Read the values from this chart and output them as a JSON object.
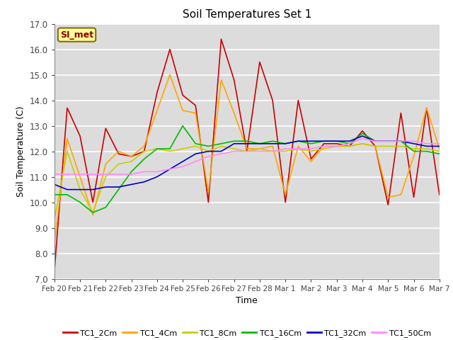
{
  "title": "Soil Temperatures Set 1",
  "xlabel": "Time",
  "ylabel": "Soil Temperature (C)",
  "ylim": [
    7.0,
    17.0
  ],
  "yticks": [
    7.0,
    8.0,
    9.0,
    10.0,
    11.0,
    12.0,
    13.0,
    14.0,
    15.0,
    16.0,
    17.0
  ],
  "annotation_text": "SI_met",
  "annotation_color": "#8B0000",
  "annotation_bg": "#FFFF99",
  "annotation_border": "#8B6914",
  "bg_color": "#DCDCDC",
  "series_order": [
    "TC1_2Cm",
    "TC1_4Cm",
    "TC1_8Cm",
    "TC1_16Cm",
    "TC1_32Cm",
    "TC1_50Cm"
  ],
  "series": {
    "TC1_2Cm": {
      "color": "#CC0000",
      "lw": 1.2
    },
    "TC1_4Cm": {
      "color": "#FFA500",
      "lw": 1.2
    },
    "TC1_8Cm": {
      "color": "#CCCC00",
      "lw": 1.2
    },
    "TC1_16Cm": {
      "color": "#00BB00",
      "lw": 1.2
    },
    "TC1_32Cm": {
      "color": "#0000CC",
      "lw": 1.2
    },
    "TC1_50Cm": {
      "color": "#FF88FF",
      "lw": 1.2
    }
  },
  "xtick_labels": [
    "Feb 20",
    "Feb 21",
    "Feb 22",
    "Feb 23",
    "Feb 24",
    "Feb 25",
    "Feb 26",
    "Feb 27",
    "Feb 28",
    "Mar 1",
    "Mar 2",
    "Mar 3",
    "Mar 4",
    "Mar 5",
    "Mar 6",
    "Mar 7"
  ],
  "TC1_2Cm": [
    7.3,
    13.7,
    12.6,
    10.0,
    12.9,
    11.9,
    11.8,
    12.0,
    14.3,
    16.0,
    14.2,
    13.8,
    10.0,
    16.4,
    14.8,
    12.0,
    15.5,
    14.0,
    10.0,
    14.0,
    11.7,
    12.3,
    12.3,
    12.2,
    12.8,
    12.2,
    9.9,
    13.5,
    10.2,
    13.7,
    10.3
  ],
  "TC1_4Cm": [
    8.4,
    12.5,
    11.0,
    9.5,
    11.5,
    12.0,
    11.8,
    12.2,
    13.6,
    15.0,
    13.6,
    13.5,
    10.4,
    14.8,
    13.5,
    12.1,
    12.1,
    12.2,
    10.3,
    12.2,
    11.6,
    12.2,
    12.2,
    12.2,
    12.3,
    12.2,
    10.2,
    10.3,
    11.8,
    13.7,
    12.1
  ],
  "TC1_8Cm": [
    9.3,
    12.0,
    10.5,
    9.6,
    11.0,
    11.5,
    11.6,
    12.0,
    12.1,
    12.0,
    12.1,
    12.2,
    12.0,
    12.2,
    12.1,
    12.0,
    12.1,
    12.0,
    12.0,
    12.1,
    12.0,
    12.1,
    12.2,
    12.2,
    12.3,
    12.2,
    12.2,
    12.2,
    12.1,
    12.1,
    12.0
  ],
  "TC1_16Cm": [
    10.3,
    10.3,
    10.0,
    9.6,
    9.8,
    10.5,
    11.2,
    11.7,
    12.1,
    12.1,
    13.0,
    12.3,
    12.2,
    12.3,
    12.4,
    12.4,
    12.3,
    12.4,
    12.3,
    12.4,
    12.3,
    12.4,
    12.4,
    12.3,
    12.7,
    12.4,
    12.4,
    12.4,
    12.0,
    12.0,
    11.9
  ],
  "TC1_32Cm": [
    10.7,
    10.5,
    10.5,
    10.5,
    10.6,
    10.6,
    10.7,
    10.8,
    11.0,
    11.3,
    11.6,
    11.9,
    12.0,
    12.0,
    12.3,
    12.3,
    12.3,
    12.3,
    12.3,
    12.4,
    12.4,
    12.4,
    12.4,
    12.4,
    12.6,
    12.4,
    12.4,
    12.4,
    12.3,
    12.2,
    12.2
  ],
  "TC1_50Cm": [
    11.1,
    11.1,
    11.1,
    11.1,
    11.1,
    11.1,
    11.1,
    11.2,
    11.2,
    11.3,
    11.4,
    11.6,
    11.8,
    11.9,
    12.0,
    12.0,
    12.0,
    12.0,
    12.1,
    12.1,
    12.1,
    12.2,
    12.2,
    12.3,
    12.5,
    12.4,
    12.4,
    12.4,
    12.4,
    12.3,
    12.3
  ]
}
